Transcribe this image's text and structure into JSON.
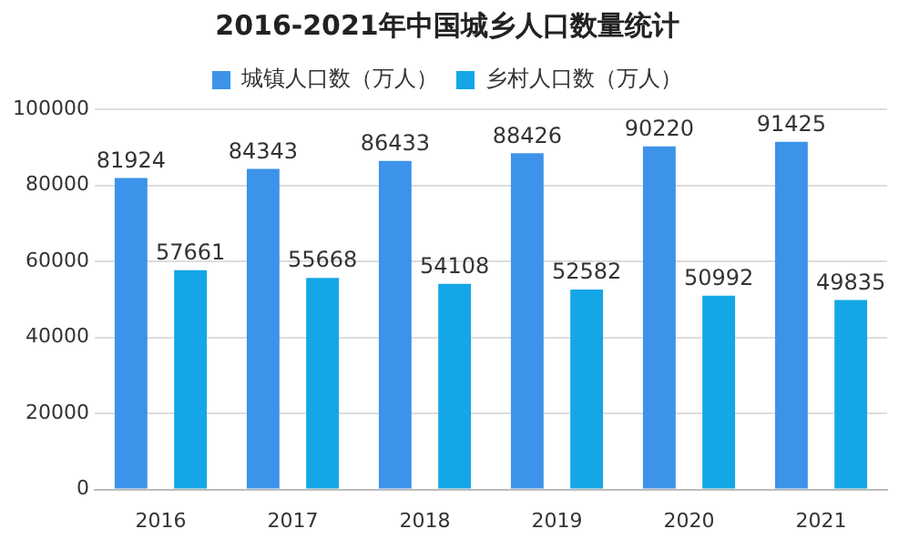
{
  "chart_data": {
    "type": "bar",
    "title": "2016-2021年中国城乡人口数量统计",
    "categories": [
      "2016",
      "2017",
      "2018",
      "2019",
      "2020",
      "2021"
    ],
    "series": [
      {
        "name": "城镇人口数（万人）",
        "color": "#3d92ea",
        "values": [
          81924,
          84343,
          86433,
          88426,
          90220,
          91425
        ]
      },
      {
        "name": "乡村人口数（万人）",
        "color": "#14a6e6",
        "values": [
          57661,
          55668,
          54108,
          52582,
          50992,
          49835
        ]
      }
    ],
    "ylim": [
      0,
      100000
    ],
    "yticks": [
      0,
      20000,
      40000,
      60000,
      80000,
      100000
    ],
    "grid": "y",
    "legend": "top",
    "data_labels": true
  }
}
